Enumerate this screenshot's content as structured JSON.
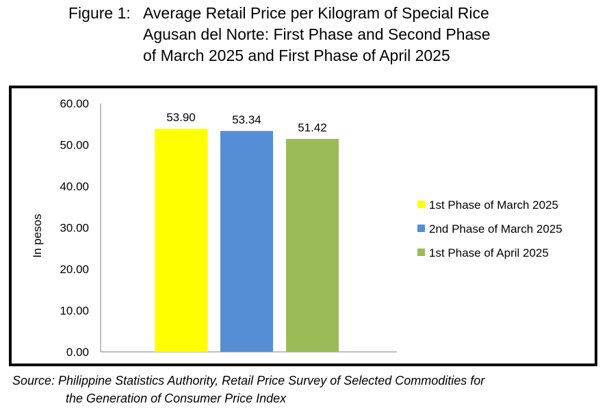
{
  "title": {
    "prefix": "Figure 1:",
    "line1": "Average Retail Price per Kilogram of Special Rice",
    "line2": "Agusan del Norte: First Phase and Second Phase",
    "line3": "of March 2025 and First Phase of April 2025"
  },
  "source": {
    "line1": "Source: Philippine Statistics Authority, Retail Price Survey of Selected Commodities for",
    "line2": "the Generation of Consumer Price Index"
  },
  "chart_data": {
    "type": "bar",
    "title": "Average Retail Price per Kilogram of Special Rice Agusan del Norte: First Phase and Second Phase of March 2025 and First Phase of April 2025",
    "xlabel": "",
    "ylabel": "In pesos",
    "ylim": [
      0,
      60
    ],
    "yticks": [
      "0.00",
      "10.00",
      "20.00",
      "30.00",
      "40.00",
      "50.00",
      "60.00"
    ],
    "grid": false,
    "legend_position": "right",
    "series": [
      {
        "name": "1st Phase of March 2025",
        "value": 53.9,
        "label": "53.90",
        "color": "#FFFF00"
      },
      {
        "name": "2nd Phase of March 2025",
        "value": 53.34,
        "label": "53.34",
        "color": "#558ED5"
      },
      {
        "name": "1st Phase of April 2025",
        "value": 51.42,
        "label": "51.42",
        "color": "#9BBB59"
      }
    ]
  }
}
